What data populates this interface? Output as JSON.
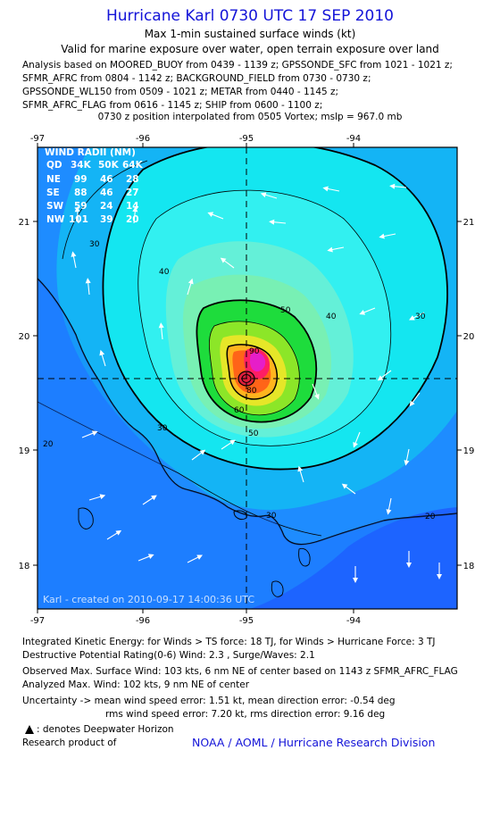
{
  "header": {
    "title": "Hurricane Karl 0730 UTC 17 SEP 2010",
    "subtitle": "Max 1-min sustained surface winds (kt)",
    "valid": "Valid for marine exposure over water, open terrain exposure over land"
  },
  "analysis_lines": [
    "Analysis based on MOORED_BUOY from 0439 - 1139 z; GPSSONDE_SFC from 1021 - 1021 z;",
    "SFMR_AFRC from 0804 - 1142 z; BACKGROUND_FIELD from 0730 - 0730 z;",
    "GPSSONDE_WL150 from 0509 - 1021 z; METAR from 0440 - 1145 z;",
    "SFMR_AFRC_FLAG from 0616 - 1145 z; SHIP from 0600 - 1100 z;"
  ],
  "position_note": "0730 z position interpolated from 0505 Vortex; mslp = 967.0 mb",
  "map": {
    "lon_labels": [
      "-97",
      "-96",
      "-95",
      "-94"
    ],
    "lat_labels": [
      "21",
      "20",
      "19",
      "18"
    ],
    "contour_labels": [
      "30",
      "40",
      "50",
      "60",
      "20",
      "90",
      "80"
    ],
    "watermark": "Karl - created on 2010-09-17 14:00:36 UTC",
    "colors": {
      "ocean": "#1e64ff",
      "cyan": "#14e6f0",
      "green": "#1edc3c",
      "orange": "#ff6418",
      "magenta": "#e61ec8",
      "frame": "#000000"
    },
    "center": {
      "lon": -95.0,
      "lat": 19.6
    },
    "wind_radii": {
      "title": "WIND RADII (NM)",
      "header": [
        "QD",
        "34K",
        "50K",
        "64K"
      ],
      "rows": [
        [
          "NE",
          "99",
          "46",
          "28"
        ],
        [
          "SE",
          "88",
          "46",
          "27"
        ],
        [
          "SW",
          "59",
          "24",
          "14"
        ],
        [
          "NW",
          "101",
          "39",
          "20"
        ]
      ]
    }
  },
  "footer": {
    "ike": "Integrated Kinetic Energy:  for Winds > TS force: 18 TJ,  for Winds > Hurricane Force: 3 TJ",
    "rating": "Destructive Potential Rating(0-6)   Wind: 2.3 , Surge/Waves: 2.1",
    "observed": "Observed Max. Surface Wind: 103 kts, 6 nm NE of center based on 1143 z SFMR_AFRC_FLAG",
    "analyzed": "Analyzed Max. Wind: 102 kts, 9 nm NE of center",
    "uncertainty1": "Uncertainty -> mean wind speed error: 1.51 kt,   mean direction error:  -0.54 deg",
    "uncertainty2": "rms wind speed error: 7.20 kt,   rms direction error: 9.16 deg",
    "deepwater": ": denotes Deepwater Horizon",
    "research": "Research product of",
    "credit": "NOAA / AOML / Hurricane Research Division"
  }
}
